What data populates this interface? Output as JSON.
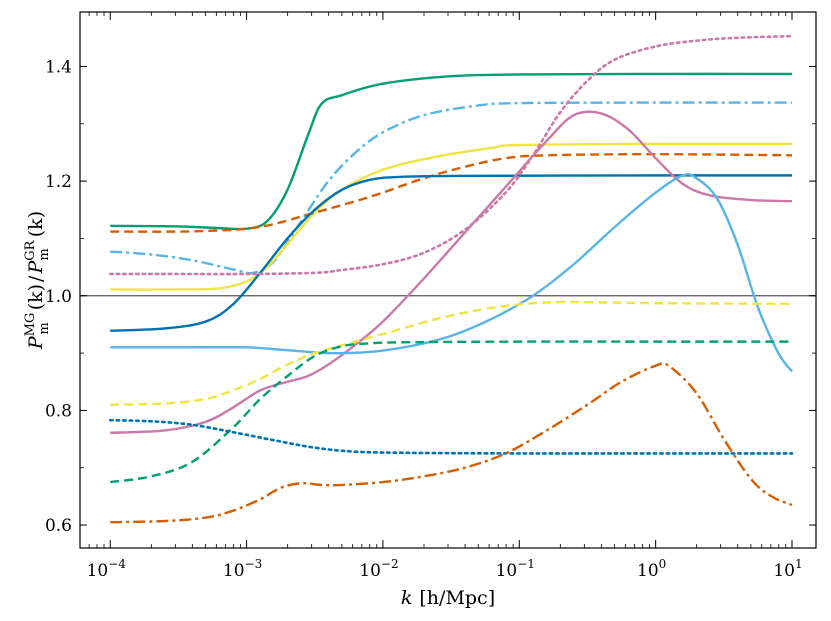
{
  "chart_data": {
    "type": "line",
    "title": "",
    "xlabel_prefix": "k",
    "xlabel_units": "[h/Mpc]",
    "ylabel": "P_m^MG(k) / P_m^GR(k)",
    "ylabel_parts": {
      "P": "P",
      "sup_num": "MG",
      "sub": "m",
      "k": "(k)",
      "slash": "/",
      "sup_den": "GR"
    },
    "xscale": "log",
    "xlim": [
      6e-05,
      15
    ],
    "ylim": [
      0.56,
      1.495
    ],
    "x_ticks": [
      {
        "value": 0.0001,
        "base": "10",
        "exp": "−4"
      },
      {
        "value": 0.001,
        "base": "10",
        "exp": "−3"
      },
      {
        "value": 0.01,
        "base": "10",
        "exp": "−2"
      },
      {
        "value": 0.1,
        "base": "10",
        "exp": "−1"
      },
      {
        "value": 1,
        "base": "10",
        "exp": "0"
      },
      {
        "value": 10,
        "base": "10",
        "exp": "1"
      }
    ],
    "y_ticks": [
      {
        "value": 0.6,
        "label": "0.6"
      },
      {
        "value": 0.8,
        "label": "0.8"
      },
      {
        "value": 1.0,
        "label": "1.0"
      },
      {
        "value": 1.2,
        "label": "1.2"
      },
      {
        "value": 1.4,
        "label": "1.4"
      }
    ],
    "reference_line": 1.0,
    "series": [
      {
        "name": "green-solid",
        "color": "#009E73",
        "style": "solid",
        "points": [
          [
            -4,
            1.122
          ],
          [
            -3.5,
            1.121
          ],
          [
            -3.2,
            1.118
          ],
          [
            -3,
            1.117
          ],
          [
            -2.85,
            1.13
          ],
          [
            -2.7,
            1.185
          ],
          [
            -2.55,
            1.28
          ],
          [
            -2.45,
            1.335
          ],
          [
            -2.3,
            1.35
          ],
          [
            -2,
            1.37
          ],
          [
            -1.5,
            1.383
          ],
          [
            -1,
            1.386
          ],
          [
            0,
            1.387
          ],
          [
            1,
            1.387
          ]
        ]
      },
      {
        "name": "skyblue-dashdot",
        "color": "#56B4E9",
        "style": "dashdot",
        "points": [
          [
            -4,
            1.077
          ],
          [
            -3.7,
            1.072
          ],
          [
            -3.4,
            1.062
          ],
          [
            -3.1,
            1.046
          ],
          [
            -2.95,
            1.04
          ],
          [
            -2.8,
            1.06
          ],
          [
            -2.6,
            1.13
          ],
          [
            -2.4,
            1.2
          ],
          [
            -2.2,
            1.25
          ],
          [
            -2,
            1.285
          ],
          [
            -1.7,
            1.315
          ],
          [
            -1.3,
            1.332
          ],
          [
            -1,
            1.336
          ],
          [
            0,
            1.337
          ],
          [
            1,
            1.337
          ]
        ]
      },
      {
        "name": "yellow-solid",
        "color": "#F0E442",
        "style": "solid",
        "points": [
          [
            -4,
            1.011
          ],
          [
            -3.5,
            1.011
          ],
          [
            -3.2,
            1.013
          ],
          [
            -3,
            1.025
          ],
          [
            -2.85,
            1.05
          ],
          [
            -2.7,
            1.09
          ],
          [
            -2.5,
            1.145
          ],
          [
            -2.3,
            1.185
          ],
          [
            -2,
            1.22
          ],
          [
            -1.6,
            1.243
          ],
          [
            -1.2,
            1.258
          ],
          [
            -1,
            1.263
          ],
          [
            0,
            1.265
          ],
          [
            1,
            1.265
          ]
        ]
      },
      {
        "name": "vermillion-dashed",
        "color": "#D55E00",
        "style": "dashed",
        "points": [
          [
            -4,
            1.112
          ],
          [
            -3.5,
            1.112
          ],
          [
            -3.2,
            1.114
          ],
          [
            -3,
            1.117
          ],
          [
            -2.8,
            1.125
          ],
          [
            -2.5,
            1.145
          ],
          [
            -2.2,
            1.165
          ],
          [
            -2,
            1.18
          ],
          [
            -1.7,
            1.205
          ],
          [
            -1.4,
            1.225
          ],
          [
            -1.1,
            1.24
          ],
          [
            -0.8,
            1.245
          ],
          [
            0,
            1.247
          ],
          [
            1,
            1.245
          ]
        ]
      },
      {
        "name": "blue-solid",
        "color": "#0072B2",
        "style": "solid",
        "points": [
          [
            -4,
            0.939
          ],
          [
            -3.6,
            0.943
          ],
          [
            -3.3,
            0.955
          ],
          [
            -3.1,
            0.985
          ],
          [
            -2.9,
            1.04
          ],
          [
            -2.7,
            1.1
          ],
          [
            -2.5,
            1.15
          ],
          [
            -2.3,
            1.185
          ],
          [
            -2.1,
            1.202
          ],
          [
            -1.9,
            1.207
          ],
          [
            -1.5,
            1.209
          ],
          [
            0,
            1.21
          ],
          [
            1,
            1.21
          ]
        ]
      },
      {
        "name": "pink-solid",
        "color": "#CC79A7",
        "style": "solid",
        "points": [
          [
            -4,
            0.761
          ],
          [
            -3.6,
            0.765
          ],
          [
            -3.3,
            0.78
          ],
          [
            -3.1,
            0.805
          ],
          [
            -2.9,
            0.835
          ],
          [
            -2.7,
            0.85
          ],
          [
            -2.55,
            0.86
          ],
          [
            -2.4,
            0.88
          ],
          [
            -2.2,
            0.915
          ],
          [
            -2,
            0.955
          ],
          [
            -1.7,
            1.03
          ],
          [
            -1.4,
            1.11
          ],
          [
            -1.1,
            1.19
          ],
          [
            -0.8,
            1.27
          ],
          [
            -0.6,
            1.315
          ],
          [
            -0.4,
            1.318
          ],
          [
            -0.2,
            1.29
          ],
          [
            0,
            1.24
          ],
          [
            0.2,
            1.195
          ],
          [
            0.4,
            1.175
          ],
          [
            0.7,
            1.167
          ],
          [
            1,
            1.165
          ]
        ]
      },
      {
        "name": "pink-dotted",
        "color": "#CC79A7",
        "style": "dotted",
        "points": [
          [
            -4,
            1.038
          ],
          [
            -3.5,
            1.038
          ],
          [
            -3,
            1.038
          ],
          [
            -2.5,
            1.04
          ],
          [
            -2.3,
            1.045
          ],
          [
            -2,
            1.055
          ],
          [
            -1.7,
            1.075
          ],
          [
            -1.4,
            1.115
          ],
          [
            -1.1,
            1.18
          ],
          [
            -0.9,
            1.245
          ],
          [
            -0.7,
            1.32
          ],
          [
            -0.5,
            1.375
          ],
          [
            -0.3,
            1.412
          ],
          [
            0,
            1.435
          ],
          [
            0.3,
            1.445
          ],
          [
            0.6,
            1.45
          ],
          [
            1,
            1.453
          ]
        ]
      },
      {
        "name": "skyblue-solid",
        "color": "#56B4E9",
        "style": "solid",
        "points": [
          [
            -4,
            0.91
          ],
          [
            -3.5,
            0.91
          ],
          [
            -3,
            0.91
          ],
          [
            -2.7,
            0.905
          ],
          [
            -2.4,
            0.9
          ],
          [
            -2.1,
            0.902
          ],
          [
            -1.8,
            0.912
          ],
          [
            -1.5,
            0.93
          ],
          [
            -1.2,
            0.96
          ],
          [
            -0.9,
            1
          ],
          [
            -0.6,
            1.055
          ],
          [
            -0.3,
            1.12
          ],
          [
            0,
            1.18
          ],
          [
            0.2,
            1.21
          ],
          [
            0.3,
            1.205
          ],
          [
            0.45,
            1.17
          ],
          [
            0.6,
            1.09
          ],
          [
            0.75,
            0.98
          ],
          [
            0.9,
            0.9
          ],
          [
            1,
            0.868
          ]
        ]
      },
      {
        "name": "yellow-dashed",
        "color": "#F0E442",
        "style": "dashed",
        "points": [
          [
            -4,
            0.81
          ],
          [
            -3.6,
            0.812
          ],
          [
            -3.3,
            0.82
          ],
          [
            -3.1,
            0.835
          ],
          [
            -2.9,
            0.855
          ],
          [
            -2.7,
            0.88
          ],
          [
            -2.5,
            0.9
          ],
          [
            -2.2,
            0.92
          ],
          [
            -1.9,
            0.94
          ],
          [
            -1.6,
            0.96
          ],
          [
            -1.3,
            0.975
          ],
          [
            -1,
            0.985
          ],
          [
            -0.7,
            0.989
          ],
          [
            -0.3,
            0.988
          ],
          [
            0,
            0.987
          ],
          [
            1,
            0.986
          ]
        ]
      },
      {
        "name": "green-dashed",
        "color": "#009E73",
        "style": "dashed",
        "points": [
          [
            -4,
            0.675
          ],
          [
            -3.7,
            0.685
          ],
          [
            -3.4,
            0.71
          ],
          [
            -3.1,
            0.77
          ],
          [
            -2.9,
            0.82
          ],
          [
            -2.7,
            0.86
          ],
          [
            -2.5,
            0.895
          ],
          [
            -2.3,
            0.912
          ],
          [
            -2.1,
            0.917
          ],
          [
            -1.8,
            0.919
          ],
          [
            -1,
            0.92
          ],
          [
            0,
            0.92
          ],
          [
            1,
            0.92
          ]
        ]
      },
      {
        "name": "blue-dotted",
        "color": "#0072B2",
        "style": "dotted",
        "points": [
          [
            -4,
            0.783
          ],
          [
            -3.7,
            0.781
          ],
          [
            -3.4,
            0.775
          ],
          [
            -3.1,
            0.762
          ],
          [
            -2.8,
            0.748
          ],
          [
            -2.5,
            0.735
          ],
          [
            -2.2,
            0.728
          ],
          [
            -1.8,
            0.726
          ],
          [
            -1,
            0.725
          ],
          [
            0,
            0.725
          ],
          [
            1,
            0.725
          ]
        ]
      },
      {
        "name": "vermillion-dashdot",
        "color": "#D55E00",
        "style": "dashdot",
        "points": [
          [
            -4,
            0.605
          ],
          [
            -3.6,
            0.607
          ],
          [
            -3.3,
            0.613
          ],
          [
            -3.1,
            0.625
          ],
          [
            -2.9,
            0.645
          ],
          [
            -2.75,
            0.665
          ],
          [
            -2.6,
            0.673
          ],
          [
            -2.45,
            0.67
          ],
          [
            -2.3,
            0.67
          ],
          [
            -2,
            0.675
          ],
          [
            -1.7,
            0.685
          ],
          [
            -1.4,
            0.7
          ],
          [
            -1.1,
            0.725
          ],
          [
            -0.8,
            0.765
          ],
          [
            -0.5,
            0.81
          ],
          [
            -0.25,
            0.85
          ],
          [
            0,
            0.878
          ],
          [
            0.1,
            0.877
          ],
          [
            0.3,
            0.83
          ],
          [
            0.5,
            0.75
          ],
          [
            0.7,
            0.68
          ],
          [
            0.85,
            0.65
          ],
          [
            1,
            0.635
          ]
        ]
      }
    ]
  }
}
